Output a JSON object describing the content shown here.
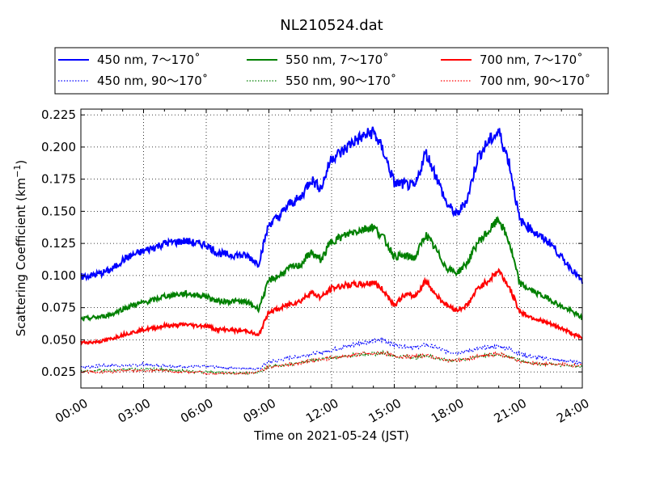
{
  "chart_data": {
    "type": "line",
    "title": "NL210524.dat",
    "xlabel": "Time on 2021-05-24 (JST)",
    "ylabel": "Scattering Coefficient (km",
    "ylabel_exp": "−1",
    "ylabel_close": ")",
    "xlim": [
      0,
      24
    ],
    "ylim": [
      0.0125,
      0.2295
    ],
    "x_ticks": [
      "00:00",
      "03:00",
      "06:00",
      "09:00",
      "12:00",
      "15:00",
      "18:00",
      "21:00",
      "24:00"
    ],
    "y_ticks": [
      "0.025",
      "0.050",
      "0.075",
      "0.100",
      "0.125",
      "0.150",
      "0.175",
      "0.200",
      "0.225"
    ],
    "grid": true,
    "legend_position": "top",
    "x_hours": [
      0,
      0.5,
      1,
      1.5,
      2,
      2.5,
      3,
      3.5,
      4,
      4.5,
      5,
      5.5,
      6,
      6.5,
      7,
      7.5,
      8,
      8.5,
      9,
      9.5,
      10,
      10.5,
      11,
      11.5,
      12,
      12.5,
      13,
      13.5,
      14,
      14.5,
      15,
      15.5,
      16,
      16.5,
      17,
      17.5,
      18,
      18.5,
      19,
      19.5,
      20,
      20.5,
      21,
      21.5,
      22,
      22.5,
      23,
      23.5,
      24
    ],
    "series": [
      {
        "name": "450 nm, 7～170˚",
        "color": "#0000ff",
        "style": "solid",
        "values": [
          0.099,
          0.1,
          0.102,
          0.105,
          0.112,
          0.116,
          0.119,
          0.122,
          0.125,
          0.126,
          0.127,
          0.125,
          0.124,
          0.118,
          0.116,
          0.116,
          0.115,
          0.109,
          0.14,
          0.146,
          0.156,
          0.16,
          0.175,
          0.168,
          0.192,
          0.196,
          0.204,
          0.208,
          0.212,
          0.196,
          0.172,
          0.171,
          0.169,
          0.196,
          0.178,
          0.156,
          0.147,
          0.16,
          0.192,
          0.204,
          0.212,
          0.188,
          0.143,
          0.137,
          0.13,
          0.125,
          0.114,
          0.105,
          0.095
        ]
      },
      {
        "name": "450 nm, 90～170˚",
        "color": "#0000ff",
        "style": "dotted",
        "values": [
          0.029,
          0.029,
          0.03,
          0.03,
          0.03,
          0.03,
          0.031,
          0.03,
          0.03,
          0.029,
          0.029,
          0.029,
          0.029,
          0.029,
          0.028,
          0.028,
          0.028,
          0.027,
          0.033,
          0.034,
          0.036,
          0.037,
          0.039,
          0.04,
          0.042,
          0.044,
          0.046,
          0.048,
          0.049,
          0.05,
          0.046,
          0.045,
          0.044,
          0.046,
          0.044,
          0.041,
          0.04,
          0.041,
          0.043,
          0.044,
          0.045,
          0.043,
          0.039,
          0.037,
          0.036,
          0.035,
          0.034,
          0.033,
          0.032
        ]
      },
      {
        "name": "550 nm, 7～170˚",
        "color": "#008000",
        "style": "solid",
        "values": [
          0.066,
          0.067,
          0.068,
          0.07,
          0.074,
          0.077,
          0.079,
          0.081,
          0.084,
          0.085,
          0.086,
          0.085,
          0.084,
          0.08,
          0.08,
          0.08,
          0.079,
          0.074,
          0.096,
          0.1,
          0.106,
          0.108,
          0.118,
          0.112,
          0.127,
          0.13,
          0.134,
          0.136,
          0.138,
          0.129,
          0.115,
          0.115,
          0.114,
          0.132,
          0.12,
          0.106,
          0.102,
          0.11,
          0.126,
          0.134,
          0.144,
          0.126,
          0.094,
          0.089,
          0.085,
          0.081,
          0.076,
          0.072,
          0.067
        ]
      },
      {
        "name": "550 nm, 90～170˚",
        "color": "#008000",
        "style": "dotted",
        "values": [
          0.026,
          0.026,
          0.026,
          0.026,
          0.027,
          0.027,
          0.027,
          0.027,
          0.027,
          0.026,
          0.026,
          0.025,
          0.025,
          0.025,
          0.024,
          0.024,
          0.024,
          0.025,
          0.029,
          0.03,
          0.031,
          0.032,
          0.034,
          0.035,
          0.036,
          0.037,
          0.038,
          0.039,
          0.039,
          0.04,
          0.037,
          0.037,
          0.036,
          0.038,
          0.036,
          0.034,
          0.034,
          0.035,
          0.037,
          0.038,
          0.039,
          0.037,
          0.034,
          0.032,
          0.031,
          0.031,
          0.03,
          0.03,
          0.029
        ]
      },
      {
        "name": "700 nm, 7～170˚",
        "color": "#ff0000",
        "style": "solid",
        "values": [
          0.048,
          0.048,
          0.049,
          0.051,
          0.054,
          0.056,
          0.058,
          0.059,
          0.061,
          0.061,
          0.062,
          0.061,
          0.061,
          0.058,
          0.058,
          0.057,
          0.057,
          0.053,
          0.072,
          0.074,
          0.078,
          0.08,
          0.087,
          0.083,
          0.09,
          0.092,
          0.093,
          0.093,
          0.095,
          0.088,
          0.077,
          0.085,
          0.084,
          0.096,
          0.085,
          0.077,
          0.073,
          0.077,
          0.09,
          0.096,
          0.104,
          0.091,
          0.072,
          0.068,
          0.065,
          0.062,
          0.059,
          0.055,
          0.051
        ]
      },
      {
        "name": "700 nm, 90～170˚",
        "color": "#ff0000",
        "style": "dotted",
        "values": [
          0.025,
          0.025,
          0.025,
          0.025,
          0.026,
          0.026,
          0.026,
          0.026,
          0.026,
          0.025,
          0.025,
          0.025,
          0.024,
          0.024,
          0.024,
          0.024,
          0.024,
          0.025,
          0.029,
          0.03,
          0.031,
          0.032,
          0.034,
          0.035,
          0.036,
          0.037,
          0.038,
          0.039,
          0.039,
          0.04,
          0.037,
          0.037,
          0.037,
          0.038,
          0.036,
          0.034,
          0.034,
          0.035,
          0.037,
          0.038,
          0.039,
          0.037,
          0.033,
          0.032,
          0.031,
          0.031,
          0.031,
          0.03,
          0.03
        ]
      }
    ]
  }
}
